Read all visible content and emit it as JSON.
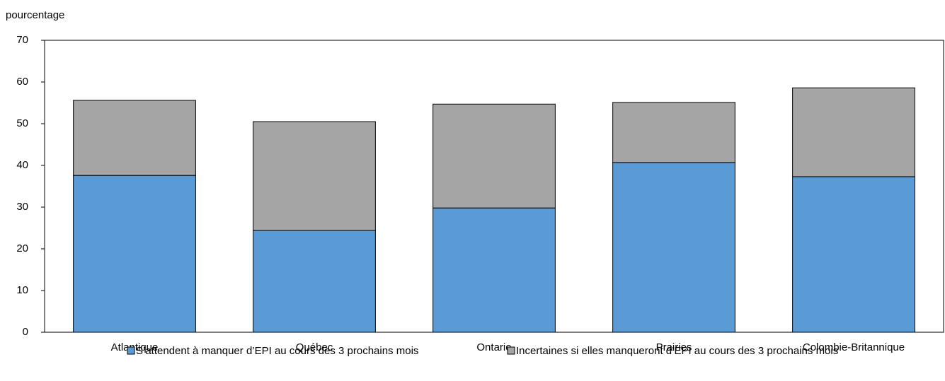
{
  "chart_data": {
    "type": "bar",
    "stacked": true,
    "y_axis_label": "pourcentage",
    "categories": [
      "Atlantique",
      "Québec",
      "Ontario",
      "Prairies",
      "Colombie-Britannique"
    ],
    "series": [
      {
        "name": "S’attendent à manquer d’EPI au cours des 3 prochains mois",
        "color": "#5b9bd5",
        "values": [
          37.6,
          24.4,
          29.8,
          40.7,
          37.3
        ]
      },
      {
        "name": "Incertaines si elles manqueront d’EPI au cours des 3 prochains mois",
        "color": "#a5a5a5",
        "values": [
          18.0,
          26.1,
          24.9,
          14.4,
          21.3
        ]
      }
    ],
    "ylim": [
      0,
      70
    ],
    "yticks": [
      0,
      10,
      20,
      30,
      40,
      50,
      60,
      70
    ],
    "grid": false,
    "legend": "bottom"
  }
}
